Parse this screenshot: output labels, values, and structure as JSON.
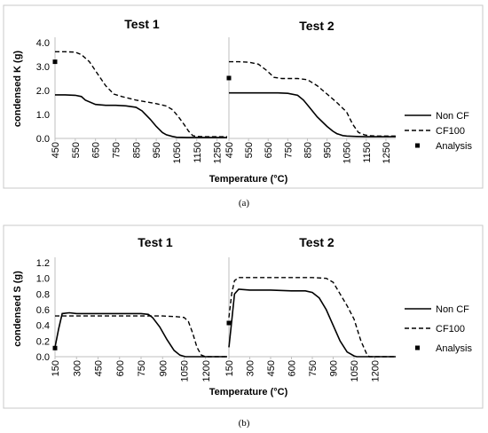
{
  "chart_data": [
    {
      "type": "line",
      "caption": "(a)",
      "ylabel": "condensed K (g)",
      "xlabel": "Temperature (°C)",
      "ylim": [
        0,
        4.0
      ],
      "yticks": [
        "0.0",
        "1.0",
        "2.0",
        "3.0",
        "4.0"
      ],
      "ytick_values": [
        0,
        1,
        2,
        3,
        4
      ],
      "xlim": [
        450,
        1300
      ],
      "xticks": [
        "450",
        "550",
        "650",
        "750",
        "850",
        "950",
        "1050",
        "1150",
        "1250"
      ],
      "xtick_values": [
        450,
        550,
        650,
        750,
        850,
        950,
        1050,
        1150,
        1250
      ],
      "legend": [
        "Non CF",
        "CF100",
        "Analysis"
      ],
      "panels": [
        {
          "title": "Test 1",
          "series": [
            {
              "name": "Non CF",
              "style": "solid",
              "x": [
                450,
                500,
                550,
                580,
                600,
                650,
                700,
                750,
                800,
                850,
                880,
                920,
                950,
                980,
                1000,
                1030,
                1050,
                1100,
                1300
              ],
              "y": [
                1.82,
                1.82,
                1.8,
                1.75,
                1.6,
                1.42,
                1.38,
                1.38,
                1.36,
                1.3,
                1.15,
                0.8,
                0.5,
                0.25,
                0.15,
                0.08,
                0.05,
                0.04,
                0.04
              ]
            },
            {
              "name": "CF100",
              "style": "dashed",
              "x": [
                450,
                500,
                550,
                580,
                620,
                660,
                700,
                740,
                780,
                850,
                950,
                1000,
                1030,
                1060,
                1090,
                1110,
                1130,
                1150,
                1200,
                1300
              ],
              "y": [
                3.62,
                3.62,
                3.6,
                3.5,
                3.2,
                2.7,
                2.2,
                1.85,
                1.75,
                1.6,
                1.45,
                1.35,
                1.2,
                0.9,
                0.55,
                0.3,
                0.12,
                0.08,
                0.07,
                0.07
              ]
            }
          ],
          "analysis": {
            "x": 450,
            "y": 3.2
          }
        },
        {
          "title": "Test 2",
          "series": [
            {
              "name": "Non CF",
              "style": "solid",
              "x": [
                450,
                500,
                550,
                600,
                650,
                700,
                750,
                800,
                830,
                860,
                900,
                950,
                980,
                1000,
                1030,
                1050,
                1100,
                1150,
                1300
              ],
              "y": [
                1.9,
                1.9,
                1.9,
                1.9,
                1.9,
                1.9,
                1.88,
                1.8,
                1.6,
                1.3,
                0.9,
                0.5,
                0.3,
                0.2,
                0.12,
                0.1,
                0.08,
                0.07,
                0.07
              ]
            },
            {
              "name": "CF100",
              "style": "dashed",
              "x": [
                450,
                500,
                550,
                600,
                640,
                680,
                720,
                800,
                850,
                900,
                950,
                1000,
                1050,
                1080,
                1110,
                1140,
                1160,
                1200,
                1300
              ],
              "y": [
                3.2,
                3.2,
                3.18,
                3.1,
                2.85,
                2.55,
                2.5,
                2.5,
                2.45,
                2.2,
                1.85,
                1.5,
                1.1,
                0.6,
                0.25,
                0.15,
                0.12,
                0.1,
                0.1
              ]
            }
          ],
          "analysis": {
            "x": 450,
            "y": 2.52
          }
        }
      ]
    },
    {
      "type": "line",
      "caption": "(b)",
      "ylabel": "condensed S (g)",
      "xlabel": "Temperature (°C)",
      "ylim": [
        0,
        1.2
      ],
      "yticks": [
        "0.0",
        "0.2",
        "0.4",
        "0.6",
        "0.8",
        "1.0",
        "1.2"
      ],
      "ytick_values": [
        0,
        0.2,
        0.4,
        0.6,
        0.8,
        1.0,
        1.2
      ],
      "xlim": [
        150,
        1350
      ],
      "xticks": [
        "150",
        "300",
        "450",
        "600",
        "750",
        "900",
        "1050",
        "1200"
      ],
      "xtick_values": [
        150,
        300,
        450,
        600,
        750,
        900,
        1050,
        1200
      ],
      "legend": [
        "Non CF",
        "CF100",
        "Analysis"
      ],
      "panels": [
        {
          "title": "Test 1",
          "series": [
            {
              "name": "Non CF",
              "style": "solid",
              "x": [
                150,
                175,
                200,
                250,
                300,
                450,
                600,
                750,
                800,
                830,
                880,
                930,
                980,
                1020,
                1040,
                1060,
                1350
              ],
              "y": [
                0.12,
                0.35,
                0.55,
                0.56,
                0.55,
                0.55,
                0.55,
                0.55,
                0.54,
                0.5,
                0.38,
                0.22,
                0.08,
                0.02,
                0.01,
                0.0,
                0.0
              ]
            },
            {
              "name": "CF100",
              "style": "dashed",
              "x": [
                150,
                170,
                200,
                250,
                300,
                450,
                600,
                750,
                900,
                1000,
                1050,
                1080,
                1110,
                1140,
                1170,
                1200,
                1350
              ],
              "y": [
                0.52,
                0.52,
                0.52,
                0.52,
                0.52,
                0.52,
                0.52,
                0.52,
                0.52,
                0.51,
                0.5,
                0.45,
                0.3,
                0.12,
                0.02,
                0.0,
                0.0
              ]
            }
          ],
          "analysis": {
            "x": 150,
            "y": 0.11
          }
        },
        {
          "title": "Test 2",
          "series": [
            {
              "name": "Non CF",
              "style": "solid",
              "x": [
                150,
                170,
                190,
                220,
                300,
                450,
                600,
                700,
                750,
                800,
                850,
                900,
                950,
                1000,
                1050,
                1070,
                1350
              ],
              "y": [
                0.12,
                0.45,
                0.8,
                0.86,
                0.85,
                0.85,
                0.84,
                0.84,
                0.82,
                0.75,
                0.6,
                0.4,
                0.2,
                0.06,
                0.01,
                0.0,
                0.0
              ]
            },
            {
              "name": "CF100",
              "style": "dashed",
              "x": [
                150,
                170,
                190,
                220,
                300,
                450,
                600,
                750,
                850,
                900,
                950,
                1000,
                1050,
                1100,
                1140,
                1160,
                1350
              ],
              "y": [
                0.5,
                0.8,
                0.97,
                1.01,
                1.01,
                1.01,
                1.01,
                1.01,
                1.0,
                0.95,
                0.8,
                0.65,
                0.48,
                0.2,
                0.04,
                0.0,
                0.0
              ]
            }
          ],
          "analysis": {
            "x": 150,
            "y": 0.43
          }
        }
      ]
    }
  ]
}
